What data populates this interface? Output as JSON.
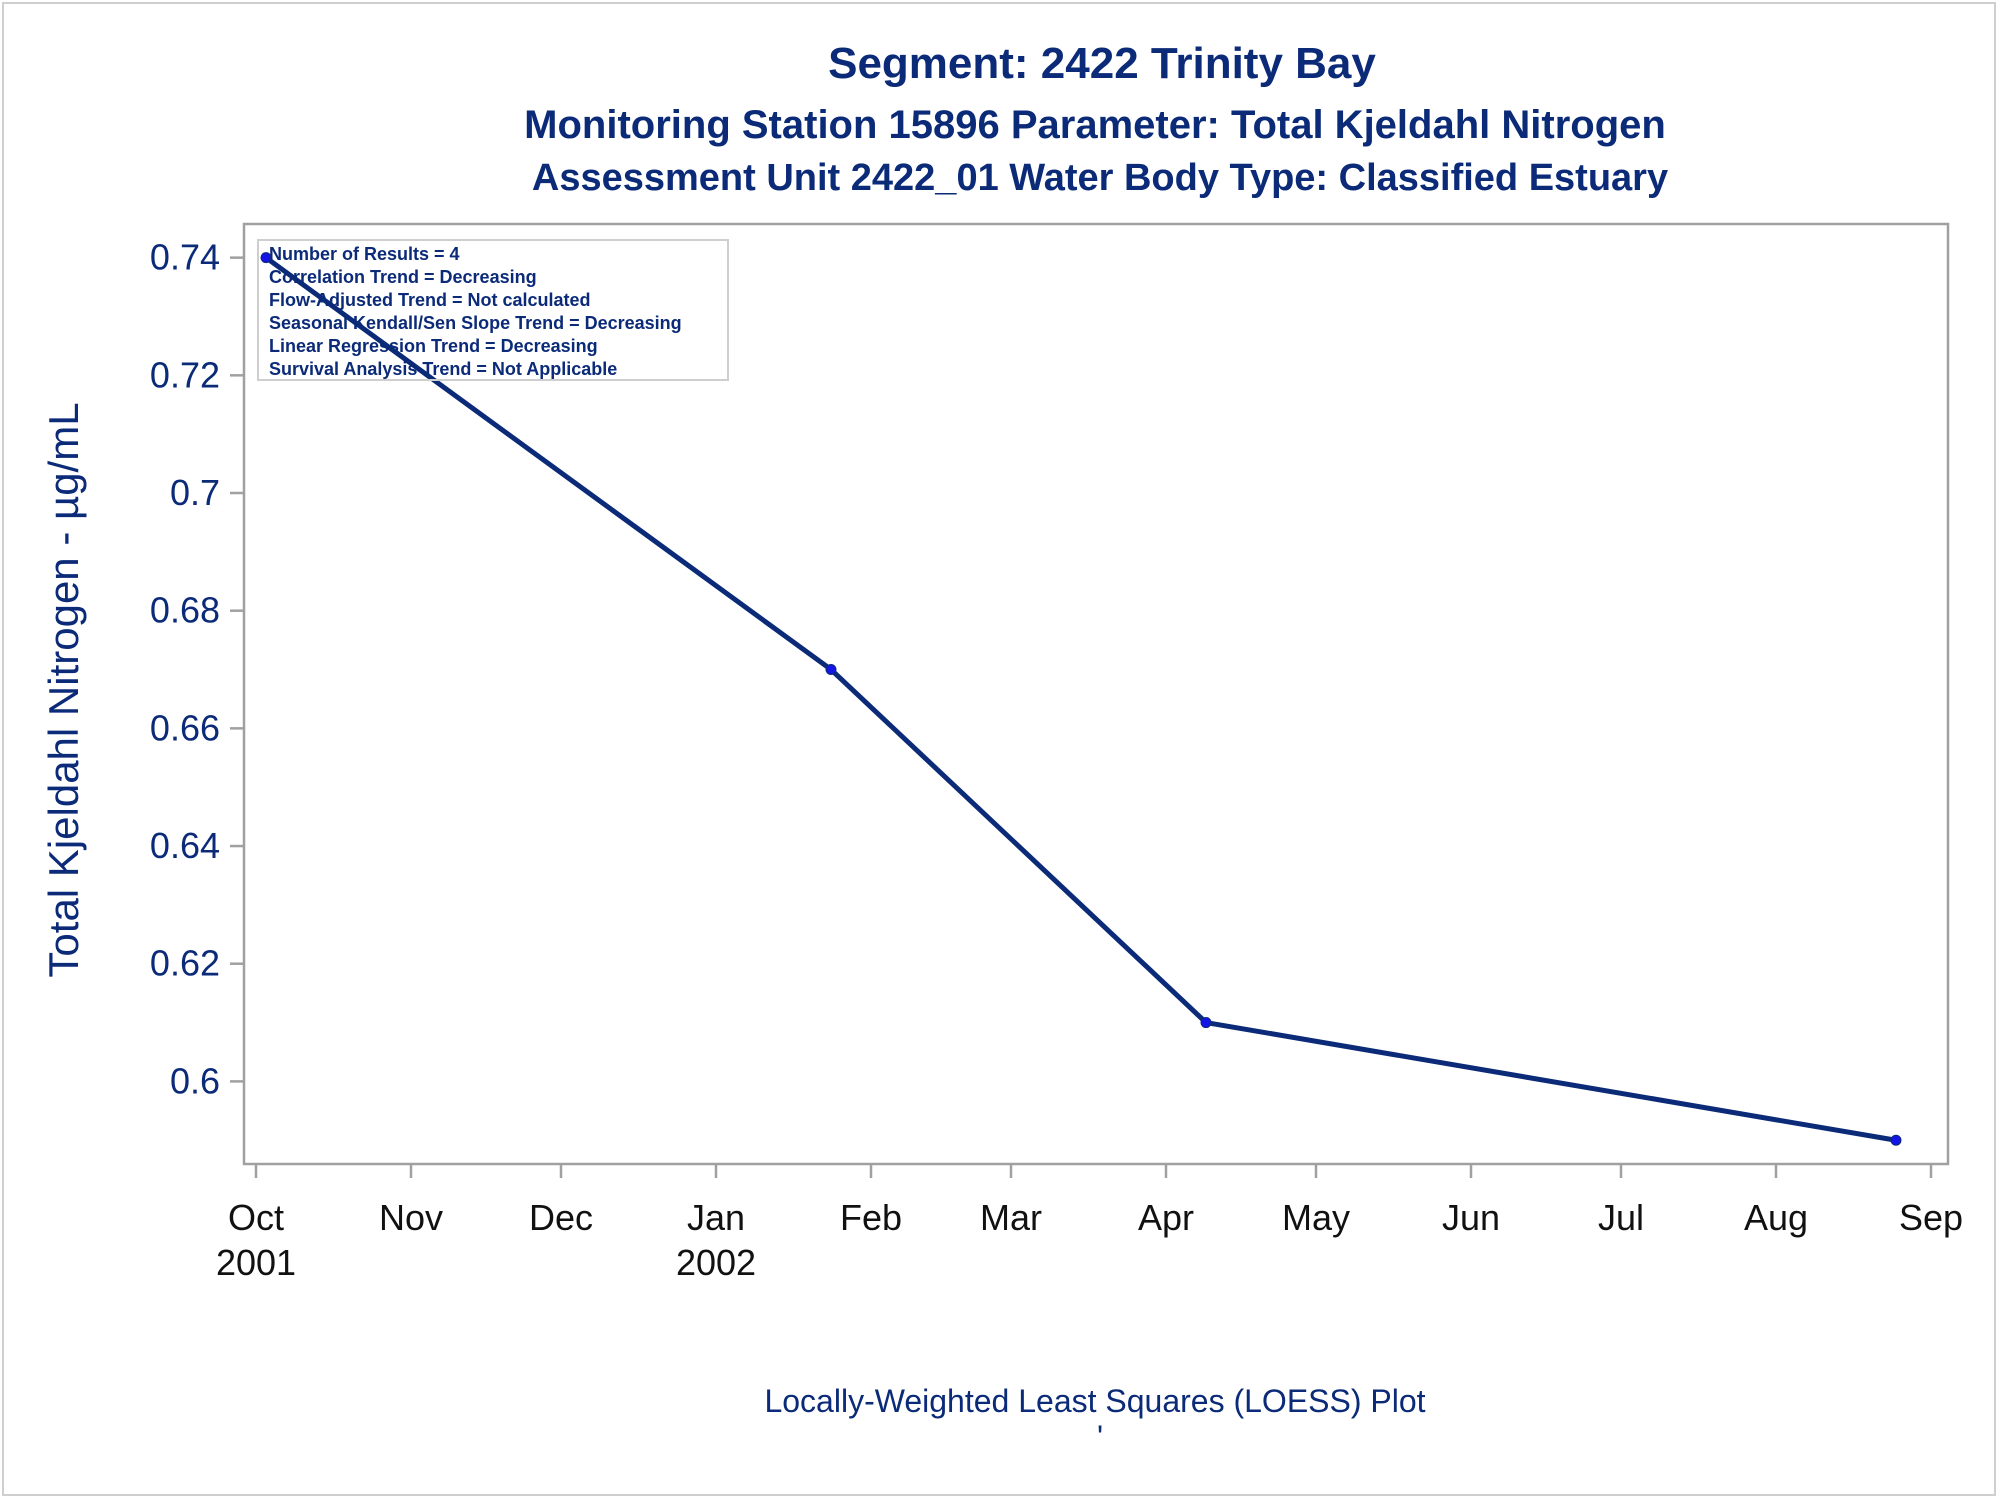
{
  "titles": {
    "line1": "Segment: 2422  Trinity Bay",
    "line2": "Monitoring Station 15896 Parameter: Total Kjeldahl Nitrogen",
    "line3": "Assessment Unit 2422_01   Water Body Type: Classified Estuary"
  },
  "footer": "Locally-Weighted Least Squares (LOESS) Plot",
  "footer_mark": "'",
  "info_box": [
    "Number of Results = 4",
    "Correlation Trend = Decreasing",
    "Flow-Adjusted Trend = Not calculated",
    "Seasonal Kendall/Sen Slope Trend = Decreasing",
    "Linear Regression Trend = Decreasing",
    "Survival Analysis Trend = Not Applicable"
  ],
  "colors": {
    "line": "#0b2a78",
    "marker": "#1414e6",
    "axis": "#a0a0a0",
    "text": "#0b2a78"
  },
  "chart_data": {
    "type": "line",
    "title": "Segment: 2422  Trinity Bay",
    "ylabel": "Total Kjeldahl Nitrogen -  µg/mL",
    "xlabel": "",
    "x_range": [
      "2001-10-01",
      "2002-09-01"
    ],
    "ylim": [
      0.588,
      0.743
    ],
    "yticks": [
      0.74,
      0.72,
      0.7,
      0.68,
      0.66,
      0.64,
      0.62,
      0.6
    ],
    "ytick_labels": [
      "0.74",
      "0.72",
      "0.7",
      "0.68",
      "0.66",
      "0.64",
      "0.62",
      "0.6"
    ],
    "xticks": [
      {
        "date": "2001-10-01",
        "label": "Oct",
        "year": "2001"
      },
      {
        "date": "2001-11-01",
        "label": "Nov",
        "year": ""
      },
      {
        "date": "2001-12-01",
        "label": "Dec",
        "year": ""
      },
      {
        "date": "2002-01-01",
        "label": "Jan",
        "year": "2002"
      },
      {
        "date": "2002-02-01",
        "label": "Feb",
        "year": ""
      },
      {
        "date": "2002-03-01",
        "label": "Mar",
        "year": ""
      },
      {
        "date": "2002-04-01",
        "label": "Apr",
        "year": ""
      },
      {
        "date": "2002-05-01",
        "label": "May",
        "year": ""
      },
      {
        "date": "2002-06-01",
        "label": "Jun",
        "year": ""
      },
      {
        "date": "2002-07-01",
        "label": "Jul",
        "year": ""
      },
      {
        "date": "2002-08-01",
        "label": "Aug",
        "year": ""
      },
      {
        "date": "2002-09-01",
        "label": "Sep",
        "year": ""
      }
    ],
    "points": [
      {
        "x": "2001-10-03",
        "y": 0.74
      },
      {
        "x": "2002-01-24",
        "y": 0.67
      },
      {
        "x": "2002-04-09",
        "y": 0.61
      },
      {
        "x": "2002-08-25",
        "y": 0.59
      }
    ],
    "grid": false,
    "legend": "none"
  }
}
